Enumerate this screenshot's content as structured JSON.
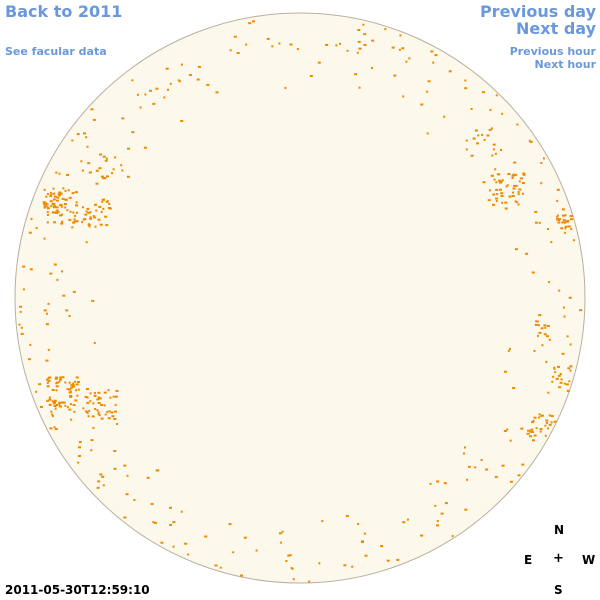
{
  "nav": {
    "back": "Back to 2011",
    "facular": "See facular data",
    "prev_day": "Previous day",
    "next_day": "Next day",
    "prev_hour": "Previous hour",
    "next_hour": "Next hour"
  },
  "compass": {
    "north": "N",
    "east": "E",
    "center": "+",
    "west": "W",
    "south": "S"
  },
  "timestamp": "2011-05-30T12:59:10",
  "colors": {
    "disk_fill": "#fdf8ec",
    "disk_stroke": "#b9b1a0",
    "feature": "#ec8a00",
    "link": "#6a98dc"
  }
}
